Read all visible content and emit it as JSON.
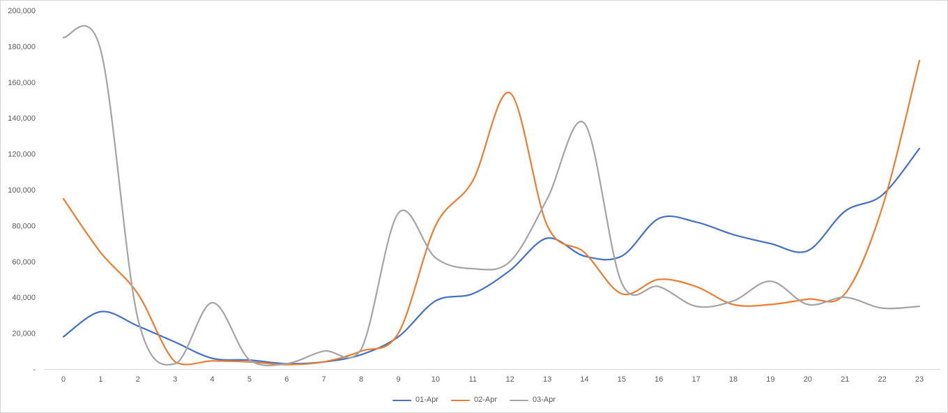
{
  "chart": {
    "legend_labels": [
      "01-Apr",
      "02-Apr",
      "03-Apr"
    ]
  },
  "chart_data": {
    "type": "line",
    "smooth": true,
    "x": [
      0,
      1,
      2,
      3,
      4,
      5,
      6,
      7,
      8,
      9,
      10,
      11,
      12,
      13,
      14,
      15,
      16,
      17,
      18,
      19,
      20,
      21,
      22,
      23
    ],
    "series": [
      {
        "name": "01-Apr",
        "color": "#4472C4",
        "values": [
          18000,
          32000,
          24000,
          15000,
          6000,
          5000,
          3000,
          4000,
          8000,
          18000,
          38000,
          42000,
          55000,
          73000,
          63000,
          63000,
          84000,
          82000,
          75000,
          70000,
          66000,
          88000,
          97000,
          123000
        ]
      },
      {
        "name": "02-Apr",
        "color": "#ED7D31",
        "values": [
          95000,
          65000,
          42000,
          4000,
          4500,
          4000,
          2500,
          4000,
          10000,
          20000,
          80000,
          105000,
          154000,
          80000,
          65000,
          42000,
          50000,
          46000,
          36000,
          36000,
          39000,
          42000,
          90000,
          172000
        ]
      },
      {
        "name": "03-Apr",
        "color": "#A5A5A5",
        "values": [
          185000,
          178000,
          28000,
          3000,
          37000,
          5000,
          3000,
          10000,
          11000,
          87000,
          62000,
          56000,
          60000,
          95000,
          137000,
          48000,
          46000,
          35000,
          38000,
          49000,
          36000,
          40000,
          34000,
          35000
        ]
      }
    ],
    "ylim": [
      0,
      200000
    ],
    "y_tick_step": 20000,
    "y_tick_labels": [
      "-",
      "20,000",
      "40,000",
      "60,000",
      "80,000",
      "100,000",
      "120,000",
      "140,000",
      "160,000",
      "180,000",
      "200,000"
    ],
    "xlabel": "",
    "ylabel": "",
    "title": "",
    "grid": false,
    "legend_position": "bottom",
    "axis_text_color": "#595959",
    "axis_line_color": "#d9d9d9"
  }
}
